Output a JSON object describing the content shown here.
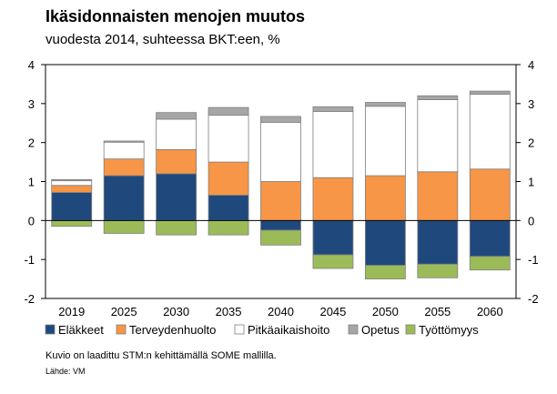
{
  "header": {
    "title": "Ikäsidonnaisten menojen muutos",
    "subtitle": "vuodesta 2014, suhteessa BKT:een, %"
  },
  "footer": {
    "note": "Kuvio on laadittu STM:n kehittämällä SOME mallilla.",
    "source": "Lähde: VM"
  },
  "chart_data": {
    "type": "bar",
    "stacked": true,
    "categories": [
      "2019",
      "2025",
      "2030",
      "2035",
      "2040",
      "2045",
      "2050",
      "2055",
      "2060"
    ],
    "series": [
      {
        "name": "Eläkkeet",
        "color": "#1f497d",
        "values": [
          0.72,
          1.15,
          1.2,
          0.65,
          -0.25,
          -0.88,
          -1.15,
          -1.12,
          -0.92
        ]
      },
      {
        "name": "Terveydenhuolto",
        "color": "#f79646",
        "values": [
          0.18,
          0.43,
          0.62,
          0.85,
          1.0,
          1.1,
          1.15,
          1.25,
          1.32
        ]
      },
      {
        "name": "Pitkäaikaishoito",
        "color": "#ffffff",
        "values": [
          0.12,
          0.43,
          0.78,
          1.2,
          1.52,
          1.7,
          1.78,
          1.85,
          1.92
        ]
      },
      {
        "name": "Opetus",
        "color": "#a6a6a6",
        "values": [
          0.03,
          0.03,
          0.17,
          0.2,
          0.15,
          0.12,
          0.1,
          0.1,
          0.08
        ]
      },
      {
        "name": "Työttömyys",
        "color": "#9bbb59",
        "values": [
          -0.15,
          -0.33,
          -0.37,
          -0.37,
          -0.38,
          -0.35,
          -0.35,
          -0.35,
          -0.35
        ]
      }
    ],
    "ylim": [
      -2,
      4
    ],
    "yticks": [
      "4",
      "3",
      "2",
      "1",
      "0",
      "-1",
      "-2"
    ],
    "ytick_values": [
      4,
      3,
      2,
      1,
      0,
      -1,
      -2
    ],
    "secondary_axis": true,
    "legend_position": "bottom",
    "grid": false
  }
}
